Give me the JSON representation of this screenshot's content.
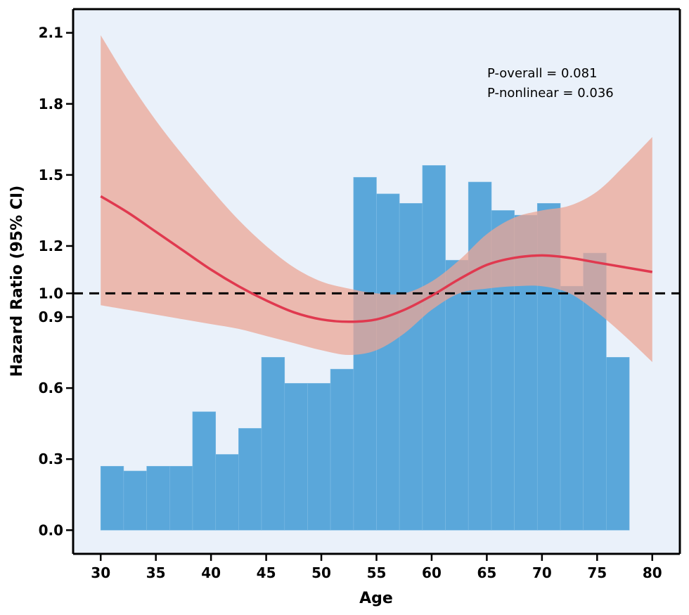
{
  "chart_data": {
    "type": "bar",
    "xlabel": "Age",
    "ylabel": "Hazard Ratio (95% CI)",
    "xlim": [
      27.5,
      82.5
    ],
    "ylim": [
      -0.1,
      2.2
    ],
    "x_ticks": [
      "30",
      "35",
      "40",
      "45",
      "50",
      "55",
      "60",
      "65",
      "70",
      "75",
      "80"
    ],
    "y_ticks": [
      "0.0",
      "0.3",
      "0.6",
      "0.9",
      "1.0",
      "1.2",
      "1.5",
      "1.8",
      "2.1"
    ],
    "reference_line": 1.0,
    "annotations": [
      "P-overall = 0.081",
      "P-nonlinear = 0.036"
    ],
    "histogram": {
      "bin_edges": [
        30,
        32.08,
        34.17,
        36.25,
        38.33,
        40.42,
        42.5,
        44.58,
        46.67,
        48.75,
        50.83,
        52.92,
        55.0,
        57.08,
        59.17,
        61.25,
        63.33,
        65.42,
        67.5,
        69.58,
        71.67,
        73.75,
        75.83,
        77.92
      ],
      "heights": [
        0.27,
        0.25,
        0.27,
        0.27,
        0.5,
        0.32,
        0.43,
        0.73,
        0.62,
        0.62,
        0.68,
        1.49,
        1.42,
        1.38,
        1.54,
        1.14,
        1.47,
        1.35,
        1.33,
        1.38,
        1.03,
        1.17,
        0.73
      ]
    },
    "spline": {
      "x": [
        30,
        32.5,
        35,
        37.5,
        40,
        42.5,
        45,
        47.5,
        50,
        52.5,
        55,
        57.5,
        60,
        62.5,
        65,
        67.5,
        70,
        72.5,
        75,
        77.5,
        80
      ],
      "hr": [
        1.41,
        1.34,
        1.26,
        1.18,
        1.1,
        1.03,
        0.97,
        0.92,
        0.89,
        0.88,
        0.89,
        0.93,
        0.99,
        1.06,
        1.12,
        1.15,
        1.16,
        1.15,
        1.13,
        1.11,
        1.09
      ],
      "lower": [
        0.95,
        0.93,
        0.91,
        0.89,
        0.87,
        0.85,
        0.82,
        0.79,
        0.76,
        0.74,
        0.76,
        0.83,
        0.93,
        1.0,
        1.02,
        1.03,
        1.03,
        1.0,
        0.92,
        0.82,
        0.71
      ],
      "upper": [
        2.09,
        1.9,
        1.73,
        1.58,
        1.44,
        1.31,
        1.2,
        1.11,
        1.05,
        1.02,
        1.0,
        1.0,
        1.05,
        1.14,
        1.25,
        1.32,
        1.35,
        1.37,
        1.43,
        1.54,
        1.66
      ]
    },
    "colors": {
      "plot_background": "#EAF1FA",
      "bars": "#5AA7DA",
      "confidence_band": "#EBA595",
      "spline_line": "#E0394F",
      "reference_line": "#000000"
    }
  }
}
